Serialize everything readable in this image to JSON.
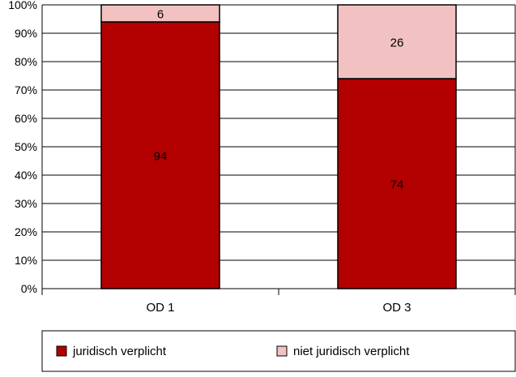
{
  "chart_data": {
    "type": "bar",
    "stacked": true,
    "normalized_percent": true,
    "categories": [
      "OD 1",
      "OD 3"
    ],
    "series": [
      {
        "name": "juridisch verplicht",
        "values": [
          94,
          74
        ],
        "color": "#b30000"
      },
      {
        "name": "niet juridisch verplicht",
        "values": [
          6,
          26
        ],
        "color": "#f2c2c2"
      }
    ],
    "y_ticks": [
      "0%",
      "10%",
      "20%",
      "30%",
      "40%",
      "50%",
      "60%",
      "70%",
      "80%",
      "90%",
      "100%"
    ],
    "ylim": [
      0,
      100
    ],
    "grid": true,
    "legend_position": "bottom",
    "data_labels": true,
    "title": "",
    "xlabel": "",
    "ylabel": ""
  }
}
